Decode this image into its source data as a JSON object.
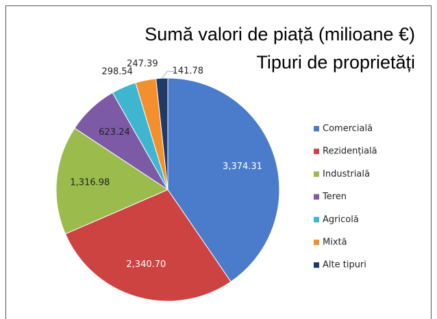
{
  "chart_data": {
    "type": "pie",
    "title": "Sumă valori de piață (milioane €)",
    "subtitle": "Tipuri de proprietăți",
    "categories": [
      "Comercială",
      "Rezidențială",
      "Industrială",
      "Teren",
      "Agricolă",
      "Mixtă",
      "Alte tipuri"
    ],
    "values": [
      3374.31,
      2340.7,
      1316.98,
      623.24,
      298.54,
      247.39,
      141.78
    ],
    "value_labels": [
      "3,374.31",
      "2,340.70",
      "1,316.98",
      "623.24",
      "298.54",
      "247.39",
      "141.78"
    ],
    "colors": [
      "#4a7ccb",
      "#cd4342",
      "#9bbb4c",
      "#7c5aa6",
      "#3eb6cf",
      "#f48f2d",
      "#1f3a66"
    ],
    "legend": "right"
  }
}
